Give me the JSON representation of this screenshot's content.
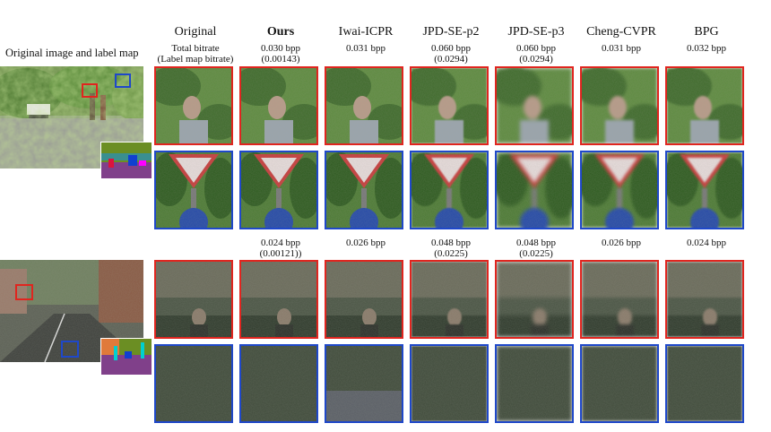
{
  "left_title": "Original image and label map",
  "columns": [
    {
      "key": "orig",
      "label": "Original",
      "bold": false
    },
    {
      "key": "ours",
      "label": "Ours",
      "bold": true
    },
    {
      "key": "iwai",
      "label": "Iwai-ICPR",
      "bold": false
    },
    {
      "key": "jpd2",
      "label": "JPD-SE-p2",
      "bold": false
    },
    {
      "key": "jpd3",
      "label": "JPD-SE-p3",
      "bold": false
    },
    {
      "key": "cheng",
      "label": "Cheng-CVPR",
      "bold": false
    },
    {
      "key": "bpg",
      "label": "BPG",
      "bold": false
    }
  ],
  "rates_top": [
    "Total bitrate\n(Label map bitrate)",
    "0.030 bpp\n(0.00143)",
    "0.031 bpp",
    "0.060 bpp\n(0.0294)",
    "0.060 bpp\n(0.0294)",
    "0.031 bpp",
    "0.032 bpp"
  ],
  "rates_bottom": [
    "",
    "0.024 bpp\n(0.00121))",
    "0.026 bpp",
    "0.048 bpp\n(0.0225)",
    "0.048 bpp\n(0.0225)",
    "0.026 bpp",
    "0.024 bpp"
  ],
  "colors": {
    "red_box": "#e0251f",
    "blue_box": "#1f48c9"
  }
}
